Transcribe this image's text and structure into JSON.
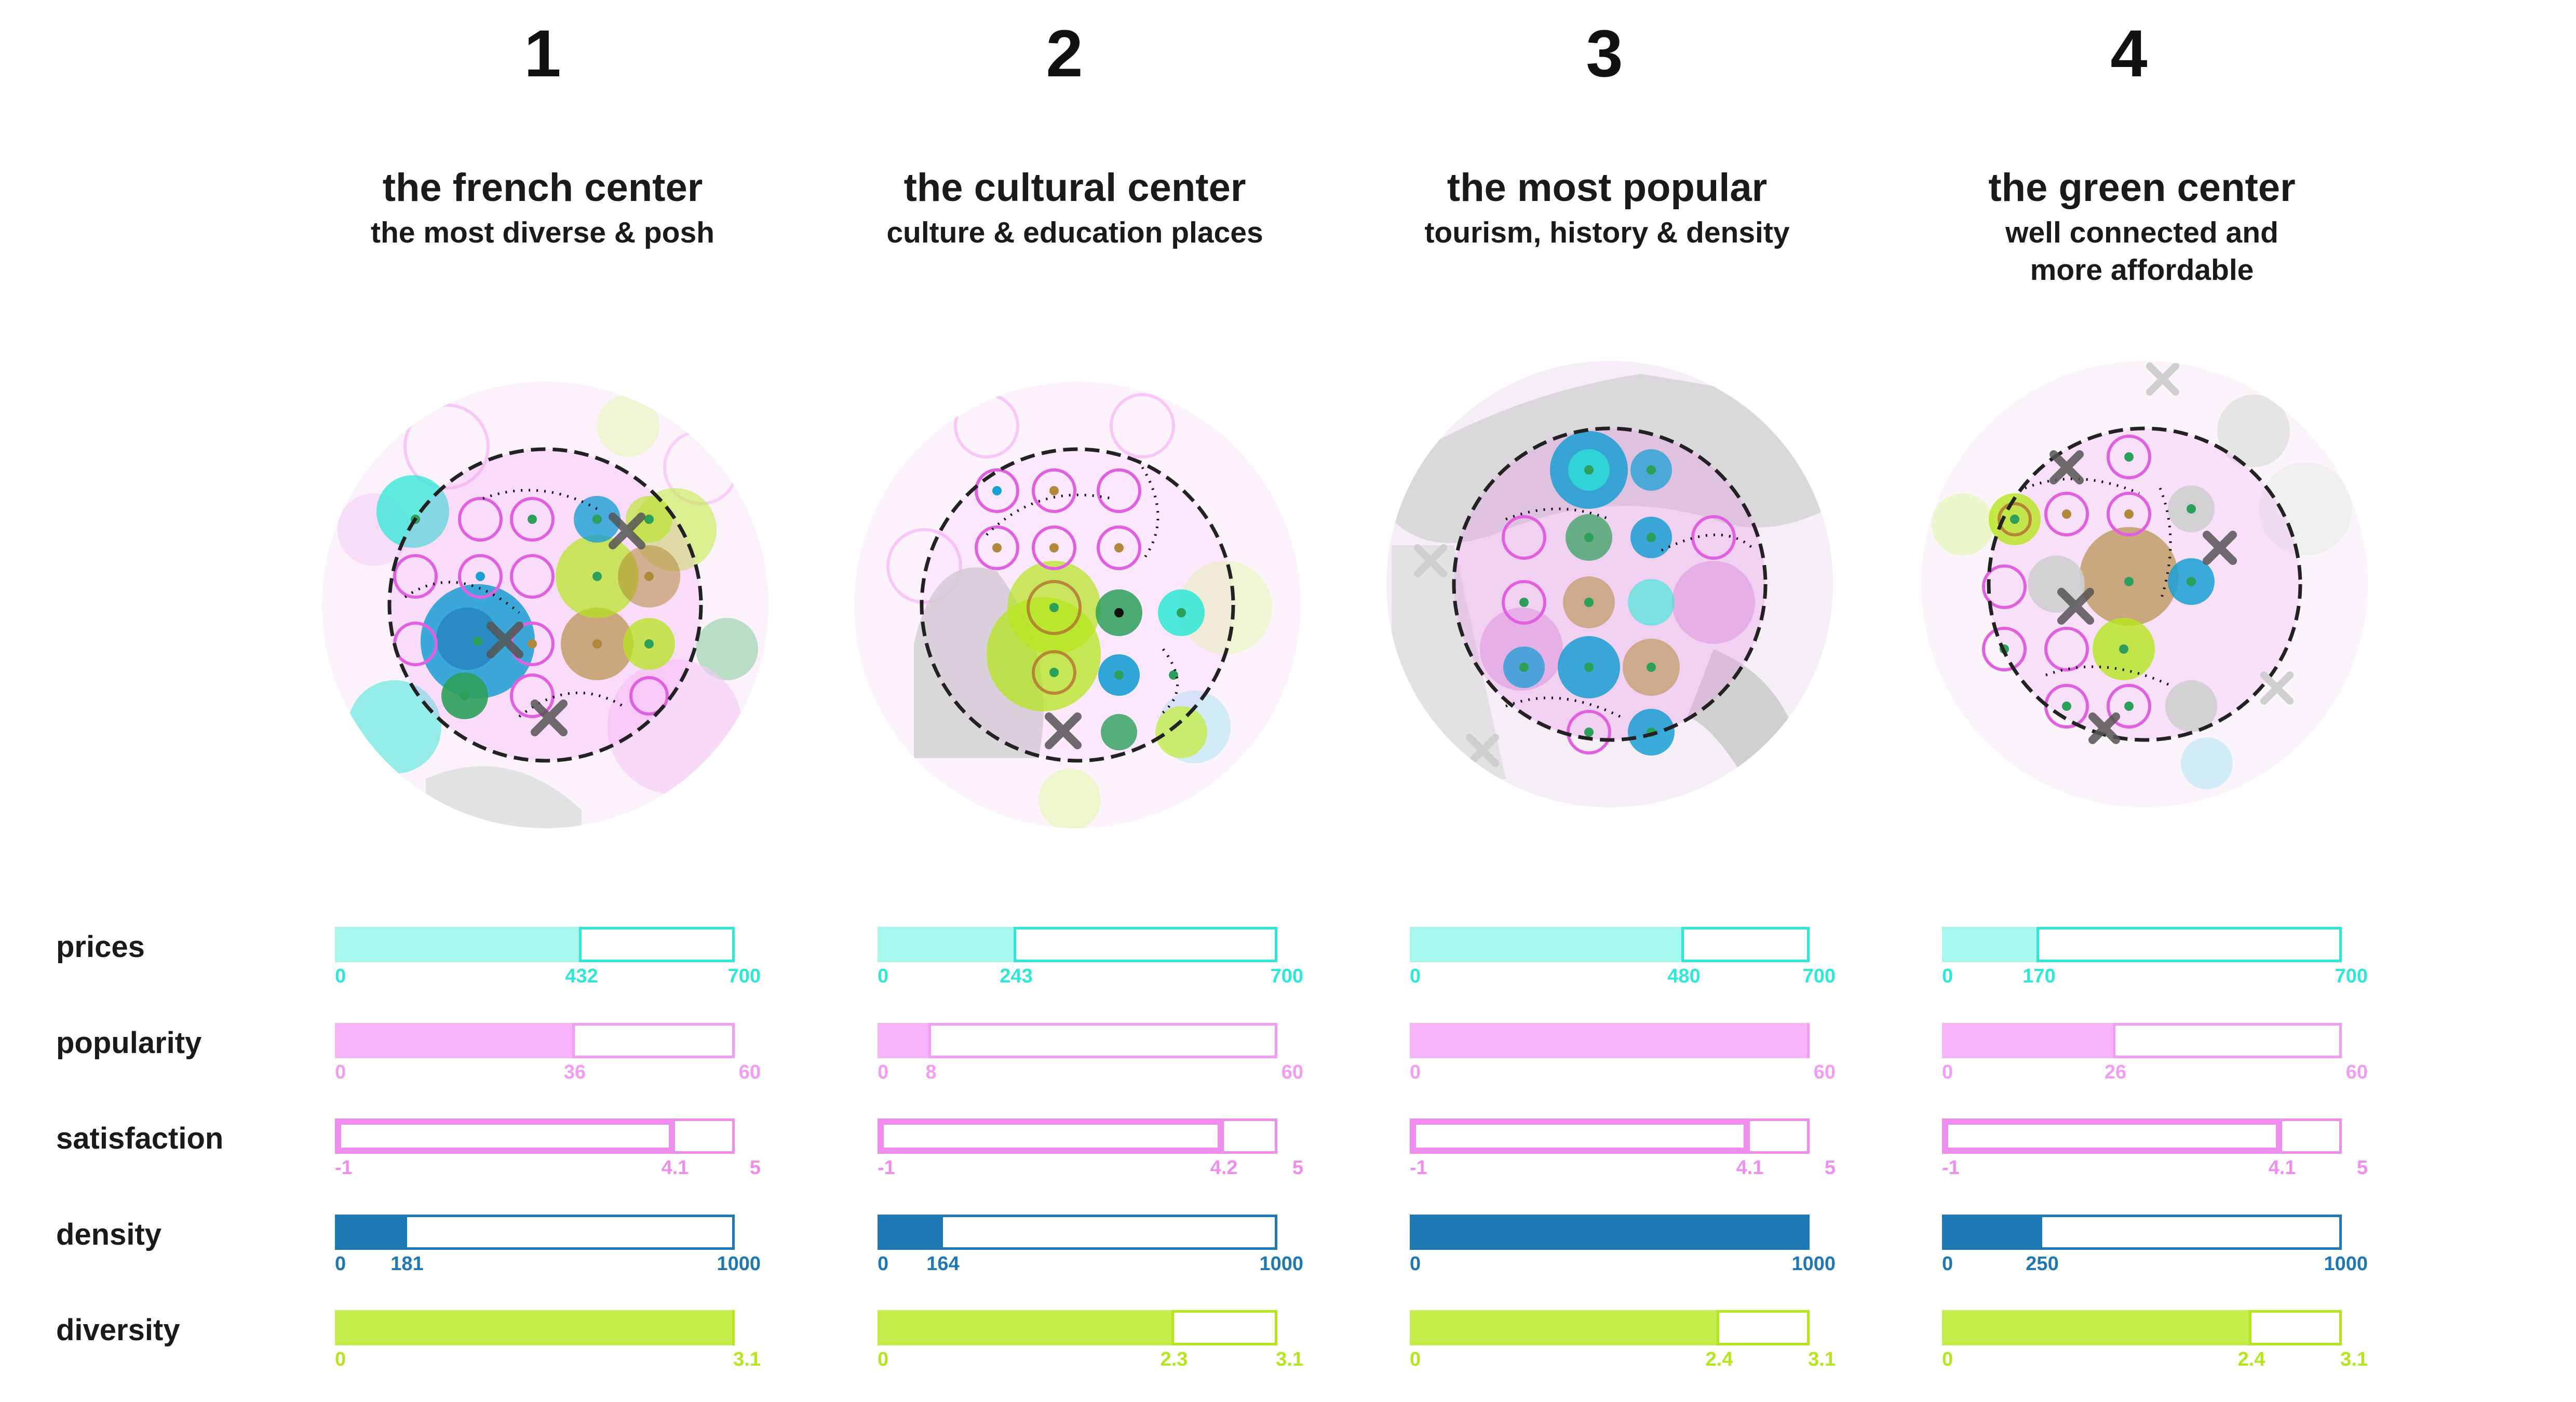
{
  "colors": {
    "prices": "#2ee8d6",
    "prices_fill": "#a8f7ee",
    "popularity": "#f39cf3",
    "popularity_fill": "#f8b4f8",
    "satisfaction": "#f08ef0",
    "density": "#1f77b4",
    "diversity": "#b5e61d",
    "diversity_fill": "#c4ec4a",
    "text": "#1a1a1a"
  },
  "row_labels": [
    "prices",
    "popularity",
    "satisfaction",
    "density",
    "diversity"
  ],
  "centers": [
    {
      "number": "1",
      "title": "the french center",
      "subtitle": "the most diverse & posh",
      "metrics": {
        "prices": {
          "min": 0,
          "value": 432,
          "max": 700,
          "min_label": "0",
          "value_label": "432",
          "max_label": "700"
        },
        "popularity": {
          "min": 0,
          "value": 36,
          "max": 60,
          "min_label": "0",
          "value_label": "36",
          "max_label": "60"
        },
        "satisfaction": {
          "min": -1,
          "value": 4.1,
          "max": 5,
          "min_label": "-1",
          "value_label": "4.1",
          "max_label": "5"
        },
        "density": {
          "min": 0,
          "value": 181,
          "max": 1000,
          "min_label": "0",
          "value_label": "181",
          "max_label": "1000"
        },
        "diversity": {
          "min": 0,
          "value": 3.1,
          "max": 3.1,
          "min_label": "0",
          "value_label": "",
          "max_label": "3.1"
        }
      }
    },
    {
      "number": "2",
      "title": "the cultural center",
      "subtitle": "culture & education places",
      "metrics": {
        "prices": {
          "min": 0,
          "value": 243,
          "max": 700,
          "min_label": "0",
          "value_label": "243",
          "max_label": "700"
        },
        "popularity": {
          "min": 0,
          "value": 8,
          "max": 60,
          "min_label": "0",
          "value_label": "8",
          "max_label": "60"
        },
        "satisfaction": {
          "min": -1,
          "value": 4.2,
          "max": 5,
          "min_label": "-1",
          "value_label": "4.2",
          "max_label": "5"
        },
        "density": {
          "min": 0,
          "value": 164,
          "max": 1000,
          "min_label": "0",
          "value_label": "164",
          "max_label": "1000"
        },
        "diversity": {
          "min": 0,
          "value": 2.3,
          "max": 3.1,
          "min_label": "0",
          "value_label": "2.3",
          "max_label": "3.1"
        }
      }
    },
    {
      "number": "3",
      "title": "the most popular",
      "subtitle": "tourism, history & density",
      "metrics": {
        "prices": {
          "min": 0,
          "value": 480,
          "max": 700,
          "min_label": "0",
          "value_label": "480",
          "max_label": "700"
        },
        "popularity": {
          "min": 0,
          "value": 60,
          "max": 60,
          "min_label": "0",
          "value_label": "",
          "max_label": "60"
        },
        "satisfaction": {
          "min": -1,
          "value": 4.1,
          "max": 5,
          "min_label": "-1",
          "value_label": "4.1",
          "max_label": "5"
        },
        "density": {
          "min": 0,
          "value": 1000,
          "max": 1000,
          "min_label": "0",
          "value_label": "",
          "max_label": "1000"
        },
        "diversity": {
          "min": 0,
          "value": 2.4,
          "max": 3.1,
          "min_label": "0",
          "value_label": "2.4",
          "max_label": "3.1"
        }
      }
    },
    {
      "number": "4",
      "title": "the green center",
      "subtitle": "well connected and\nmore affordable",
      "metrics": {
        "prices": {
          "min": 0,
          "value": 170,
          "max": 700,
          "min_label": "0",
          "value_label": "170",
          "max_label": "700"
        },
        "popularity": {
          "min": 0,
          "value": 26,
          "max": 60,
          "min_label": "0",
          "value_label": "26",
          "max_label": "60"
        },
        "satisfaction": {
          "min": -1,
          "value": 4.1,
          "max": 5,
          "min_label": "-1",
          "value_label": "4.1",
          "max_label": "5"
        },
        "density": {
          "min": 0,
          "value": 250,
          "max": 1000,
          "min_label": "0",
          "value_label": "250",
          "max_label": "1000"
        },
        "diversity": {
          "min": 0,
          "value": 2.4,
          "max": 3.1,
          "min_label": "0",
          "value_label": "2.4",
          "max_label": "3.1"
        }
      }
    }
  ]
}
